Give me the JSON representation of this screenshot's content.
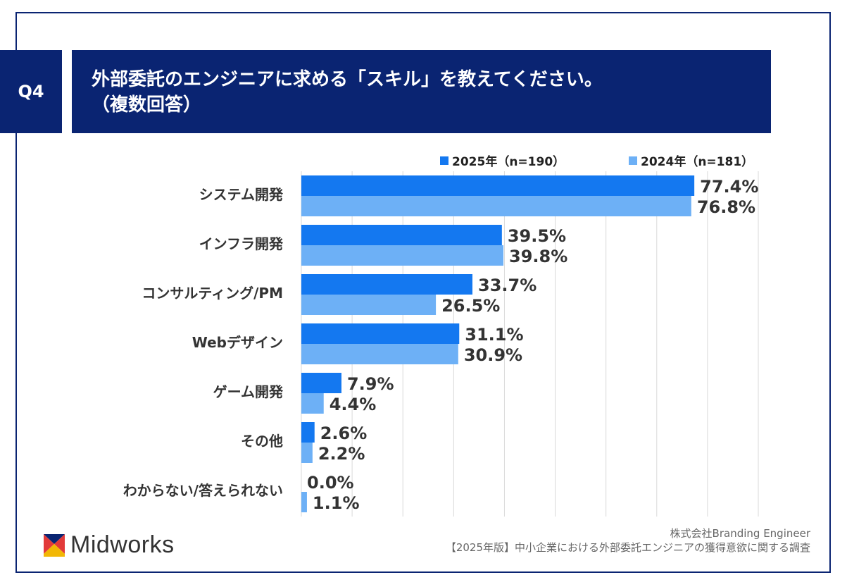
{
  "question": {
    "tag": "Q4",
    "title_line1": "外部委託のエンジニアに求める「スキル」を教えてください。",
    "title_line2": "（複数回答）"
  },
  "colors": {
    "navy": "#0a2472",
    "series_2025": "#1478f0",
    "series_2024": "#6db0f6",
    "grid": "#d9d9d9",
    "label_text": "#333333"
  },
  "chart_data": {
    "type": "bar",
    "orientation": "horizontal",
    "categories": [
      "システム開発",
      "インフラ開発",
      "コンサルティング/PM",
      "Webデザイン",
      "ゲーム開発",
      "その他",
      "わからない/答えられない"
    ],
    "series": [
      {
        "name": "2025年（n=190）",
        "values": [
          77.4,
          39.5,
          33.7,
          31.1,
          7.9,
          2.6,
          0.0
        ]
      },
      {
        "name": "2024年（n=181）",
        "values": [
          76.8,
          39.8,
          26.5,
          30.9,
          4.4,
          2.2,
          1.1
        ]
      }
    ],
    "value_format": "percent_1dp",
    "xlim": [
      0,
      90
    ],
    "grid": true,
    "legend": "top-right"
  },
  "footer": {
    "company": "株式会社Branding Engineer",
    "report": "【2025年版】中小企業における外部委託エンジニアの獲得意欲に関する調査"
  },
  "logo": {
    "name": "Midworks"
  }
}
